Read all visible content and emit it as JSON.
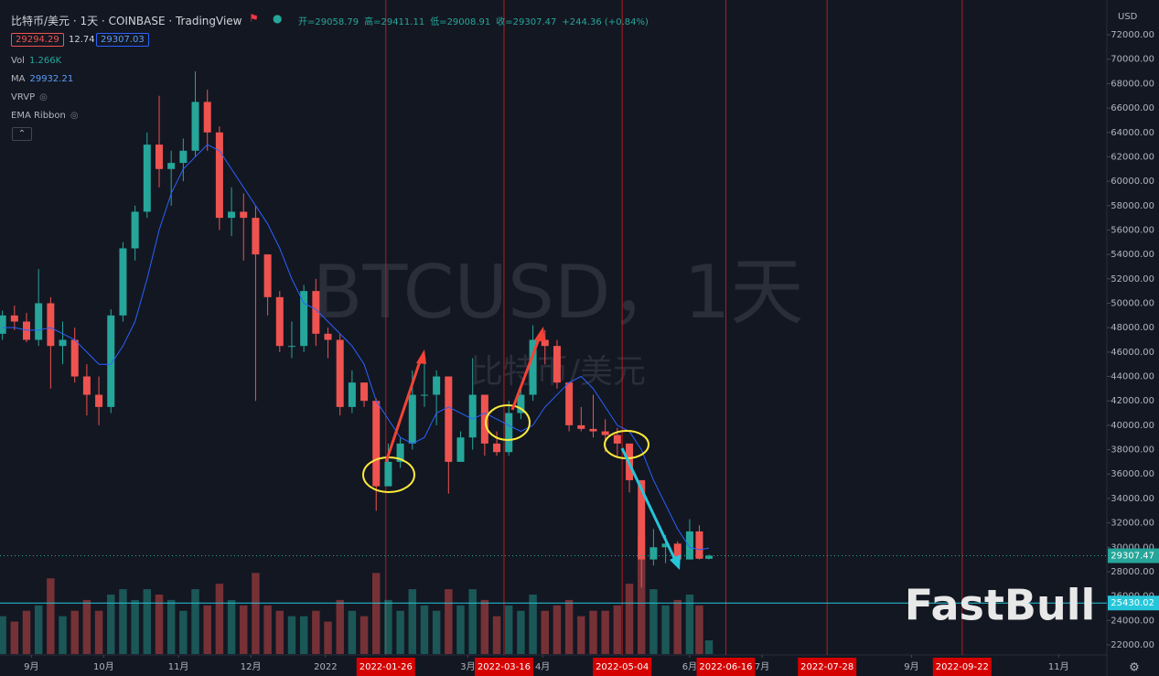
{
  "header": {
    "title": "比特币/美元 · 1天 · COINBASE · TradingView",
    "ohlc": [
      "开=29058.79",
      "高=29411.11",
      "低=29008.91",
      "收=29307.47",
      "+244.36 (+0.84%)"
    ],
    "boxes": [
      "29294.29",
      "12.74",
      "29307.03"
    ],
    "legend": [
      {
        "name": "Vol",
        "value": "1.266K"
      },
      {
        "name": "MA",
        "value": "29932.21"
      },
      {
        "name": "VRVP"
      },
      {
        "name": "EMA Ribbon"
      }
    ],
    "watermark": [
      "BTCUSD，1天",
      "比特币/美元"
    ],
    "currency": "USD",
    "logo": "FastBull"
  },
  "chart_data": {
    "type": "candlestick",
    "x": [
      "2021-08-20",
      "2021-08-25",
      "2021-08-30",
      "2021-09-04",
      "2021-09-09",
      "2021-09-14",
      "2021-09-19",
      "2021-09-24",
      "2021-09-29",
      "2021-10-04",
      "2021-10-09",
      "2021-10-14",
      "2021-10-19",
      "2021-10-24",
      "2021-10-29",
      "2021-11-03",
      "2021-11-08",
      "2021-11-13",
      "2021-11-18",
      "2021-11-23",
      "2021-11-28",
      "2021-12-03",
      "2021-12-08",
      "2021-12-13",
      "2021-12-18",
      "2021-12-23",
      "2021-12-28",
      "2022-01-02",
      "2022-01-07",
      "2022-01-12",
      "2022-01-17",
      "2022-01-22",
      "2022-01-27",
      "2022-02-01",
      "2022-02-06",
      "2022-02-11",
      "2022-02-16",
      "2022-02-21",
      "2022-02-26",
      "2022-03-03",
      "2022-03-08",
      "2022-03-13",
      "2022-03-18",
      "2022-03-23",
      "2022-03-28",
      "2022-04-02",
      "2022-04-07",
      "2022-04-12",
      "2022-04-17",
      "2022-04-22",
      "2022-04-27",
      "2022-05-02",
      "2022-05-07",
      "2022-05-12",
      "2022-05-17",
      "2022-05-22",
      "2022-05-27",
      "2022-06-01",
      "2022-06-05",
      "2022-06-09"
    ],
    "open": [
      47500,
      49000,
      48500,
      47000,
      50000,
      46500,
      47000,
      44000,
      42500,
      41500,
      49000,
      54500,
      57500,
      63000,
      61000,
      61500,
      62500,
      66500,
      64000,
      57000,
      57500,
      57000,
      54000,
      50500,
      46500,
      46500,
      51000,
      47500,
      47000,
      41500,
      43500,
      42000,
      35000,
      37000,
      38500,
      42500,
      42500,
      44000,
      37000,
      39000,
      42500,
      38500,
      37800,
      41000,
      42500,
      47000,
      46500,
      43500,
      40000,
      39700,
      39500,
      39200,
      38500,
      35500,
      29000,
      30000,
      30300,
      29000,
      31300,
      29058.79
    ],
    "high": [
      49400,
      49800,
      49200,
      52800,
      50500,
      48500,
      48000,
      45000,
      44000,
      49500,
      55000,
      58000,
      64000,
      67000,
      62500,
      63500,
      69000,
      67500,
      64500,
      59500,
      59000,
      58000,
      54000,
      51000,
      48500,
      51500,
      52000,
      48000,
      47500,
      44500,
      43500,
      42200,
      38500,
      39000,
      44500,
      45500,
      44500,
      44000,
      39500,
      45500,
      42500,
      39500,
      42000,
      43000,
      48200,
      47800,
      47000,
      43500,
      41500,
      42500,
      40500,
      39800,
      38500,
      35500,
      31500,
      31000,
      30500,
      32300,
      31800,
      29411.11
    ],
    "low": [
      47000,
      47800,
      46800,
      46500,
      43000,
      45000,
      43500,
      40800,
      40000,
      41000,
      48500,
      53500,
      57000,
      59500,
      58000,
      60000,
      62000,
      62500,
      56000,
      55500,
      53500,
      42000,
      49000,
      46000,
      45500,
      46000,
      46500,
      45500,
      40800,
      41000,
      41500,
      33000,
      35000,
      36500,
      38000,
      41500,
      40000,
      34400,
      37000,
      38000,
      37500,
      37500,
      37500,
      40500,
      42000,
      45000,
      43000,
      39500,
      39500,
      39000,
      37800,
      37500,
      34500,
      26700,
      28500,
      28700,
      28600,
      29000,
      29000,
      29008.91
    ],
    "close": [
      49000,
      48500,
      47000,
      50000,
      46500,
      47000,
      44000,
      42500,
      41500,
      49000,
      54500,
      57500,
      63000,
      61000,
      61500,
      62500,
      66500,
      64000,
      57000,
      57500,
      57000,
      54000,
      50500,
      46500,
      46500,
      51000,
      47500,
      47000,
      41500,
      43500,
      42000,
      35000,
      37000,
      38500,
      42500,
      42500,
      44000,
      37000,
      39000,
      42500,
      38500,
      37800,
      41000,
      42500,
      47000,
      46500,
      43500,
      40000,
      39700,
      39500,
      39200,
      38500,
      35500,
      29000,
      30000,
      30300,
      29000,
      31300,
      29058.79,
      29307.47
    ],
    "volume": [
      3.5,
      3.0,
      4.0,
      4.5,
      7.0,
      3.5,
      4.0,
      5.0,
      4.0,
      5.5,
      6.0,
      5.0,
      6.0,
      5.5,
      5.0,
      4.0,
      6.0,
      4.5,
      6.5,
      5.0,
      4.5,
      7.5,
      4.5,
      4.0,
      3.5,
      3.5,
      4.0,
      3.0,
      5.0,
      4.0,
      3.5,
      7.5,
      5.0,
      4.0,
      6.0,
      4.5,
      4.0,
      6.0,
      4.5,
      6.0,
      5.0,
      3.5,
      4.5,
      4.0,
      5.5,
      4.0,
      4.5,
      5.0,
      3.5,
      4.0,
      4.0,
      4.5,
      6.5,
      11.0,
      6.0,
      4.5,
      5.0,
      5.5,
      4.5,
      1.266
    ],
    "ma": [
      48000,
      48000,
      47800,
      47800,
      48000,
      47500,
      47000,
      46000,
      45000,
      45000,
      46500,
      48500,
      52000,
      56000,
      59000,
      61000,
      62000,
      63000,
      62500,
      61000,
      59500,
      58000,
      56500,
      54500,
      52000,
      50000,
      49500,
      48500,
      47500,
      46500,
      45000,
      42000,
      40500,
      39000,
      38500,
      39000,
      41000,
      41500,
      41000,
      40500,
      41000,
      40500,
      40000,
      39500,
      40000,
      41500,
      42500,
      43500,
      44000,
      43000,
      41500,
      40000,
      39500,
      38000,
      35500,
      33500,
      31500,
      30000,
      29800,
      29932.21
    ],
    "up_color": "#26a69a",
    "down_color": "#ef5350",
    "ma_color": "#2962ff",
    "xlim": [
      "2021-08-19",
      "2022-11-21"
    ],
    "xticks": [
      {
        "value": "2021-09-01",
        "label": "9月"
      },
      {
        "value": "2021-10-01",
        "label": "10月"
      },
      {
        "value": "2021-11-01",
        "label": "11月"
      },
      {
        "value": "2021-12-01",
        "label": "12月"
      },
      {
        "value": "2022-01-01",
        "label": "2022"
      },
      {
        "value": "2022-03-01",
        "label": "3月"
      },
      {
        "value": "2022-04-01",
        "label": "4月"
      },
      {
        "value": "2022-06-01",
        "label": "6月"
      },
      {
        "value": "2022-07-01",
        "label": "7月"
      },
      {
        "value": "2022-09-01",
        "label": "9月"
      },
      {
        "value": "2022-11-01",
        "label": "11月"
      }
    ],
    "markers": [
      "2022-01-26",
      "2022-03-16",
      "2022-05-04",
      "2022-06-16",
      "2022-07-28",
      "2022-09-22"
    ],
    "ylim": [
      21174,
      74853
    ],
    "yticks": [
      {
        "value": 22000,
        "label": "22000.00"
      },
      {
        "value": 24000,
        "label": "24000.00"
      },
      {
        "value": 26000,
        "label": "26000.00"
      },
      {
        "value": 28000,
        "label": "28000.00"
      },
      {
        "value": 30000,
        "label": "30000.00"
      },
      {
        "value": 32000,
        "label": "32000.00"
      },
      {
        "value": 34000,
        "label": "34000.00"
      },
      {
        "value": 36000,
        "label": "36000.00"
      },
      {
        "value": 38000,
        "label": "38000.00"
      },
      {
        "value": 40000,
        "label": "40000.00"
      },
      {
        "value": 42000,
        "label": "42000.00"
      },
      {
        "value": 44000,
        "label": "44000.00"
      },
      {
        "value": 46000,
        "label": "46000.00"
      },
      {
        "value": 48000,
        "label": "48000.00"
      },
      {
        "value": 50000,
        "label": "50000.00"
      },
      {
        "value": 52000,
        "label": "52000.00"
      },
      {
        "value": 54000,
        "label": "54000.00"
      },
      {
        "value": 56000,
        "label": "56000.00"
      },
      {
        "value": 58000,
        "label": "58000.00"
      },
      {
        "value": 60000,
        "label": "60000.00"
      },
      {
        "value": 62000,
        "label": "62000.00"
      },
      {
        "value": 64000,
        "label": "64000.00"
      },
      {
        "value": 66000,
        "label": "66000.00"
      },
      {
        "value": 68000,
        "label": "68000.00"
      },
      {
        "value": 70000,
        "label": "70000.00"
      },
      {
        "value": 72000,
        "label": "72000.00"
      }
    ],
    "price_lines": [
      {
        "value": 29307.47,
        "label": "29307.47",
        "color": "#26a69a"
      },
      {
        "value": 25430.02,
        "label": "25430.02",
        "color": "#26c6da"
      }
    ]
  }
}
